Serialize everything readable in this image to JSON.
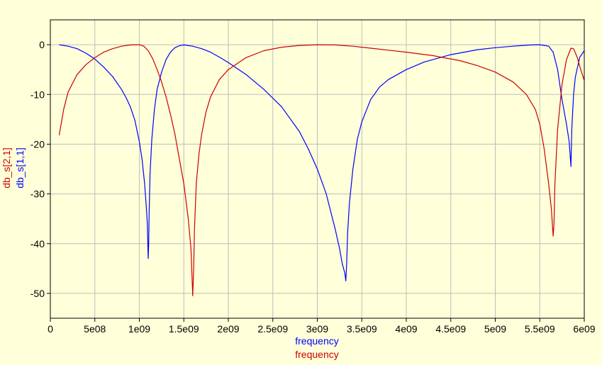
{
  "chart_data": {
    "type": "line",
    "title": "",
    "xlabels": [
      {
        "text": "frequency",
        "color": "#0000ff"
      },
      {
        "text": "frequency",
        "color": "#cc0000"
      }
    ],
    "ylabels": [
      {
        "text": "db_s[2,1]",
        "color": "#cc0000"
      },
      {
        "text": "db_s[1,1]",
        "color": "#0000ff"
      }
    ],
    "xlim": [
      0,
      6000000000
    ],
    "ylim": [
      -55,
      5
    ],
    "xticks": [
      {
        "value": 0,
        "label": "0"
      },
      {
        "value": 500000000,
        "label": "5e08"
      },
      {
        "value": 1000000000,
        "label": "1e09"
      },
      {
        "value": 1500000000,
        "label": "1.5e09"
      },
      {
        "value": 2000000000,
        "label": "2e09"
      },
      {
        "value": 2500000000,
        "label": "2.5e09"
      },
      {
        "value": 3000000000,
        "label": "3e09"
      },
      {
        "value": 3500000000,
        "label": "3.5e09"
      },
      {
        "value": 4000000000,
        "label": "4e09"
      },
      {
        "value": 4500000000,
        "label": "4.5e09"
      },
      {
        "value": 5000000000,
        "label": "5e09"
      },
      {
        "value": 5500000000,
        "label": "5.5e09"
      },
      {
        "value": 6000000000,
        "label": "6e09"
      }
    ],
    "yticks": [
      {
        "value": 0,
        "label": "0"
      },
      {
        "value": -10,
        "label": "-10"
      },
      {
        "value": -20,
        "label": "-20"
      },
      {
        "value": -30,
        "label": "-30"
      },
      {
        "value": -40,
        "label": "-40"
      },
      {
        "value": -50,
        "label": "-50"
      }
    ],
    "grid": true,
    "colors": {
      "background": "#ffffd9",
      "grid": "#bdbdbd",
      "axes": "#000000"
    },
    "series": [
      {
        "name": "db_s[1,1]",
        "color": "#0000ff",
        "x": [
          100000000.0,
          200000000.0,
          300000000.0,
          400000000.0,
          500000000.0,
          600000000.0,
          700000000.0,
          800000000.0,
          850000000.0,
          900000000.0,
          950000000.0,
          1000000000.0,
          1030000000.0,
          1060000000.0,
          1080000000.0,
          1090000000.0,
          1100000000.0,
          1105000000.0,
          1110000000.0,
          1120000000.0,
          1140000000.0,
          1170000000.0,
          1200000000.0,
          1250000000.0,
          1300000000.0,
          1350000000.0,
          1400000000.0,
          1450000000.0,
          1500000000.0,
          1600000000.0,
          1700000000.0,
          1800000000.0,
          1900000000.0,
          2000000000.0,
          2200000000.0,
          2400000000.0,
          2600000000.0,
          2800000000.0,
          2900000000.0,
          3000000000.0,
          3100000000.0,
          3150000000.0,
          3200000000.0,
          3250000000.0,
          3280000000.0,
          3310000000.0,
          3320000000.0,
          3330000000.0,
          3340000000.0,
          3360000000.0,
          3400000000.0,
          3450000000.0,
          3500000000.0,
          3600000000.0,
          3700000000.0,
          3800000000.0,
          4000000000.0,
          4200000000.0,
          4500000000.0,
          4800000000.0,
          5000000000.0,
          5200000000.0,
          5400000000.0,
          5500000000.0,
          5600000000.0,
          5650000000.0,
          5700000000.0,
          5750000000.0,
          5800000000.0,
          5830000000.0,
          5850000000.0,
          5860000000.0,
          5880000000.0,
          5900000000.0,
          5950000000.0,
          6000000000.0
        ],
        "y": [
          0,
          -0.3,
          -0.8,
          -1.7,
          -2.9,
          -4.5,
          -6.4,
          -9.0,
          -10.6,
          -12.5,
          -15.2,
          -19.5,
          -23,
          -28,
          -33,
          -36,
          -43,
          -40,
          -34,
          -26,
          -19,
          -13,
          -9,
          -5.5,
          -3,
          -1.5,
          -0.6,
          -0.2,
          -0.05,
          -0.3,
          -0.8,
          -1.5,
          -2.5,
          -3.6,
          -6.0,
          -9.0,
          -12.5,
          -17.5,
          -21,
          -25,
          -30,
          -33.5,
          -37,
          -41,
          -44,
          -46,
          -47.5,
          -44,
          -38,
          -32,
          -25,
          -19,
          -15.5,
          -11,
          -8.5,
          -7,
          -5,
          -3.5,
          -2,
          -1,
          -0.6,
          -0.3,
          -0.05,
          0,
          -0.3,
          -1.5,
          -5,
          -11,
          -16,
          -19.5,
          -24.5,
          -17,
          -10,
          -6.5,
          -2.5,
          -1.2
        ]
      },
      {
        "name": "db_s[2,1]",
        "color": "#cc0000",
        "x": [
          100000000.0,
          150000000.0,
          200000000.0,
          300000000.0,
          400000000.0,
          500000000.0,
          600000000.0,
          700000000.0,
          800000000.0,
          900000000.0,
          1000000000.0,
          1050000000.0,
          1100000000.0,
          1150000000.0,
          1200000000.0,
          1250000000.0,
          1300000000.0,
          1350000000.0,
          1400000000.0,
          1450000000.0,
          1500000000.0,
          1550000000.0,
          1580000000.0,
          1600000000.0,
          1610000000.0,
          1620000000.0,
          1640000000.0,
          1670000000.0,
          1700000000.0,
          1750000000.0,
          1800000000.0,
          1900000000.0,
          2000000000.0,
          2200000000.0,
          2400000000.0,
          2600000000.0,
          2800000000.0,
          3000000000.0,
          3200000000.0,
          3400000000.0,
          3600000000.0,
          3800000000.0,
          4000000000.0,
          4300000000.0,
          4600000000.0,
          4800000000.0,
          5000000000.0,
          5200000000.0,
          5350000000.0,
          5450000000.0,
          5500000000.0,
          5550000000.0,
          5600000000.0,
          5630000000.0,
          5650000000.0,
          5660000000.0,
          5670000000.0,
          5700000000.0,
          5750000000.0,
          5800000000.0,
          5850000000.0,
          5880000000.0,
          5920000000.0,
          5960000000.0,
          6000000000.0
        ],
        "y": [
          -18.2,
          -13,
          -9.5,
          -6,
          -4,
          -2.6,
          -1.5,
          -0.8,
          -0.3,
          -0.05,
          0,
          -0.3,
          -1.2,
          -2.8,
          -5,
          -7.5,
          -10.5,
          -14,
          -18,
          -23,
          -28,
          -35,
          -41,
          -50.5,
          -45,
          -37,
          -28,
          -22,
          -18,
          -13.5,
          -10.5,
          -7,
          -5,
          -2.6,
          -1.2,
          -0.5,
          -0.15,
          0,
          -0.05,
          -0.3,
          -0.7,
          -1.1,
          -1.5,
          -2.2,
          -3.2,
          -4.2,
          -5.5,
          -7.5,
          -10,
          -13,
          -16,
          -21,
          -28,
          -33,
          -38.5,
          -36,
          -28,
          -17,
          -8,
          -3,
          -0.7,
          -0.8,
          -2.5,
          -5,
          -7.2
        ]
      }
    ]
  }
}
